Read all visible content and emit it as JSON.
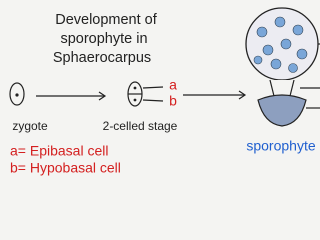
{
  "title": {
    "lines": [
      "Development of",
      "sporophyte in",
      "Sphaerocarpus"
    ]
  },
  "stages": [
    {
      "label": "zygote"
    },
    {
      "label": "2-celled stage"
    },
    {
      "label": "sporophyte"
    }
  ],
  "cell_labels": [
    "a",
    "b"
  ],
  "legend": [
    "a= Epibasal cell",
    "b= Hypobasal cell"
  ]
}
